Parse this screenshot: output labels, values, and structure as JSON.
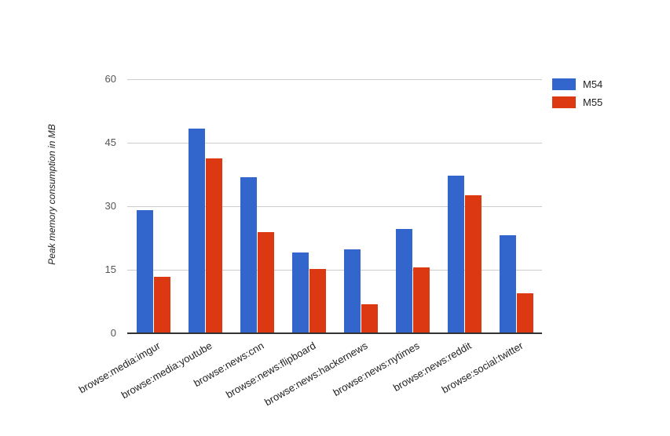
{
  "chart_data": {
    "type": "bar",
    "title": "",
    "xlabel": "",
    "ylabel": "Peak memory consumption in MB",
    "ylim": [
      0,
      60
    ],
    "yticks": [
      0,
      15,
      30,
      45,
      60
    ],
    "grid": true,
    "legend_position": "right",
    "categories": [
      "browse:media:imgur",
      "browse:media:youtube",
      "browse:news:cnn",
      "browse:news:flipboard",
      "browse:news:hackernews",
      "browse:news:nytimes",
      "browse:news:reddit",
      "browse:social:twitter"
    ],
    "series": [
      {
        "name": "M54",
        "color": "#3366CC",
        "values": [
          29.0,
          48.4,
          36.9,
          19.0,
          19.9,
          24.6,
          37.3,
          23.1
        ]
      },
      {
        "name": "M55",
        "color": "#DC3912",
        "values": [
          13.4,
          41.3,
          23.8,
          15.2,
          6.9,
          15.6,
          32.5,
          9.4
        ]
      }
    ]
  },
  "colors": {
    "gridline": "#CCCCCC",
    "baseline": "#333333",
    "y_tick_text": "#555555",
    "x_label_text": "#222222",
    "background": "#FFFFFF"
  }
}
